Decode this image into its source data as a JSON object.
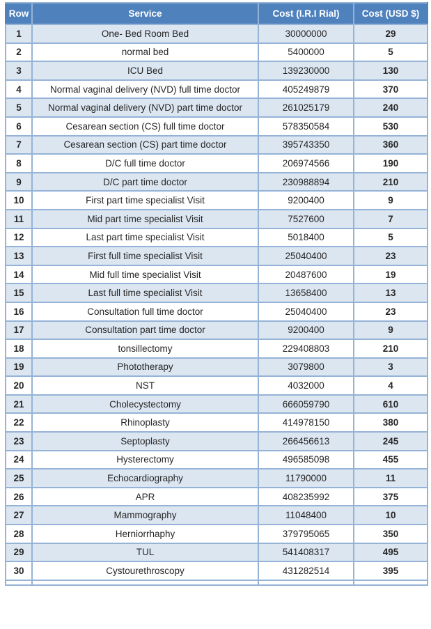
{
  "colors": {
    "header_bg": "#4F81BD",
    "alt_row_bg": "#DCE6F1",
    "row_bg": "#FFFFFF",
    "border": "#95B3D7",
    "header_text": "#FFFFFF",
    "body_text": "#262626"
  },
  "chart_data": {
    "type": "table",
    "columns": [
      "Row",
      "Service",
      "Cost (I.R.I Rial)",
      "Cost (USD $)"
    ],
    "rows": [
      {
        "row": "1",
        "service": "One- Bed Room Bed",
        "cost_rial": "30000000",
        "cost_usd": "29"
      },
      {
        "row": "2",
        "service": "normal bed",
        "cost_rial": "5400000",
        "cost_usd": "5"
      },
      {
        "row": "3",
        "service": "ICU Bed",
        "cost_rial": "139230000",
        "cost_usd": "130"
      },
      {
        "row": "4",
        "service": "Normal vaginal delivery (NVD) full time doctor",
        "cost_rial": "405249879",
        "cost_usd": "370"
      },
      {
        "row": "5",
        "service": "Normal vaginal delivery (NVD) part time doctor",
        "cost_rial": "261025179",
        "cost_usd": "240"
      },
      {
        "row": "6",
        "service": "Cesarean section (CS) full time doctor",
        "cost_rial": "578350584",
        "cost_usd": "530"
      },
      {
        "row": "7",
        "service": "Cesarean section (CS) part time doctor",
        "cost_rial": "395743350",
        "cost_usd": "360"
      },
      {
        "row": "8",
        "service": "D/C  full time doctor",
        "cost_rial": "206974566",
        "cost_usd": "190"
      },
      {
        "row": "9",
        "service": "D/C  part  time doctor",
        "cost_rial": "230988894",
        "cost_usd": "210"
      },
      {
        "row": "10",
        "service": "First part  time specialist Visit",
        "cost_rial": "9200400",
        "cost_usd": "9"
      },
      {
        "row": "11",
        "service": "Mid part  time  specialist Visit",
        "cost_rial": "7527600",
        "cost_usd": "7"
      },
      {
        "row": "12",
        "service": "Last part  time specialist Visit",
        "cost_rial": "5018400",
        "cost_usd": "5"
      },
      {
        "row": "13",
        "service": "First full  time specialist Visit",
        "cost_rial": "25040400",
        "cost_usd": "23"
      },
      {
        "row": "14",
        "service": "Mid full  time  specialist Visit",
        "cost_rial": "20487600",
        "cost_usd": "19"
      },
      {
        "row": "15",
        "service": "Last full  time specialist Visit",
        "cost_rial": "13658400",
        "cost_usd": "13"
      },
      {
        "row": "16",
        "service": "Consultation full time doctor",
        "cost_rial": "25040400",
        "cost_usd": "23"
      },
      {
        "row": "17",
        "service": "Consultation part  time doctor",
        "cost_rial": "9200400",
        "cost_usd": "9"
      },
      {
        "row": "18",
        "service": "tonsillectomy",
        "cost_rial": "229408803",
        "cost_usd": "210"
      },
      {
        "row": "19",
        "service": "Phototherapy",
        "cost_rial": "3079800",
        "cost_usd": "3"
      },
      {
        "row": "20",
        "service": "NST",
        "cost_rial": "4032000",
        "cost_usd": "4"
      },
      {
        "row": "21",
        "service": "Cholecystectomy",
        "cost_rial": "666059790",
        "cost_usd": "610"
      },
      {
        "row": "22",
        "service": "Rhinoplasty",
        "cost_rial": "414978150",
        "cost_usd": "380"
      },
      {
        "row": "23",
        "service": "Septoplasty",
        "cost_rial": "266456613",
        "cost_usd": "245"
      },
      {
        "row": "24",
        "service": "Hysterectomy",
        "cost_rial": "496585098",
        "cost_usd": "455"
      },
      {
        "row": "25",
        "service": "Echocardiography",
        "cost_rial": "11790000",
        "cost_usd": "11"
      },
      {
        "row": "26",
        "service": "APR",
        "cost_rial": "408235992",
        "cost_usd": "375"
      },
      {
        "row": "27",
        "service": "Mammography",
        "cost_rial": "11048400",
        "cost_usd": "10"
      },
      {
        "row": "28",
        "service": "Herniorrhaphy",
        "cost_rial": "379795065",
        "cost_usd": "350"
      },
      {
        "row": "29",
        "service": "TUL",
        "cost_rial": "541408317",
        "cost_usd": "495"
      },
      {
        "row": "30",
        "service": "Cystourethroscopy",
        "cost_rial": "431282514",
        "cost_usd": "395"
      }
    ]
  }
}
